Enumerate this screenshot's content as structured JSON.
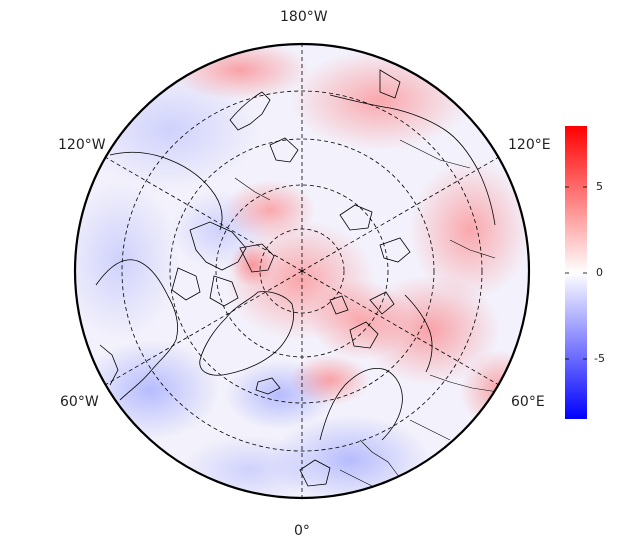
{
  "map": {
    "projection": "north-polar-stereographic",
    "longitude_labels": [
      {
        "id": "top",
        "text": "180°W"
      },
      {
        "id": "upper-left",
        "text": "120°W"
      },
      {
        "id": "upper-right",
        "text": "120°E"
      },
      {
        "id": "lower-left",
        "text": "60°W"
      },
      {
        "id": "lower-right",
        "text": "60°E"
      },
      {
        "id": "bottom",
        "text": "0°"
      }
    ],
    "graticule": {
      "style": "dashed",
      "color": "#000000"
    },
    "coastline_color": "#000000",
    "border_color": "#000000"
  },
  "colorbar": {
    "range": [
      -8.5,
      8.5
    ],
    "ticks": [
      {
        "value": 5,
        "label": "5"
      },
      {
        "value": 0,
        "label": "0"
      },
      {
        "value": -5,
        "label": "-5"
      }
    ],
    "colors": {
      "max": "#ff0000",
      "mid": "#ffffff",
      "min": "#0000ff"
    }
  }
}
